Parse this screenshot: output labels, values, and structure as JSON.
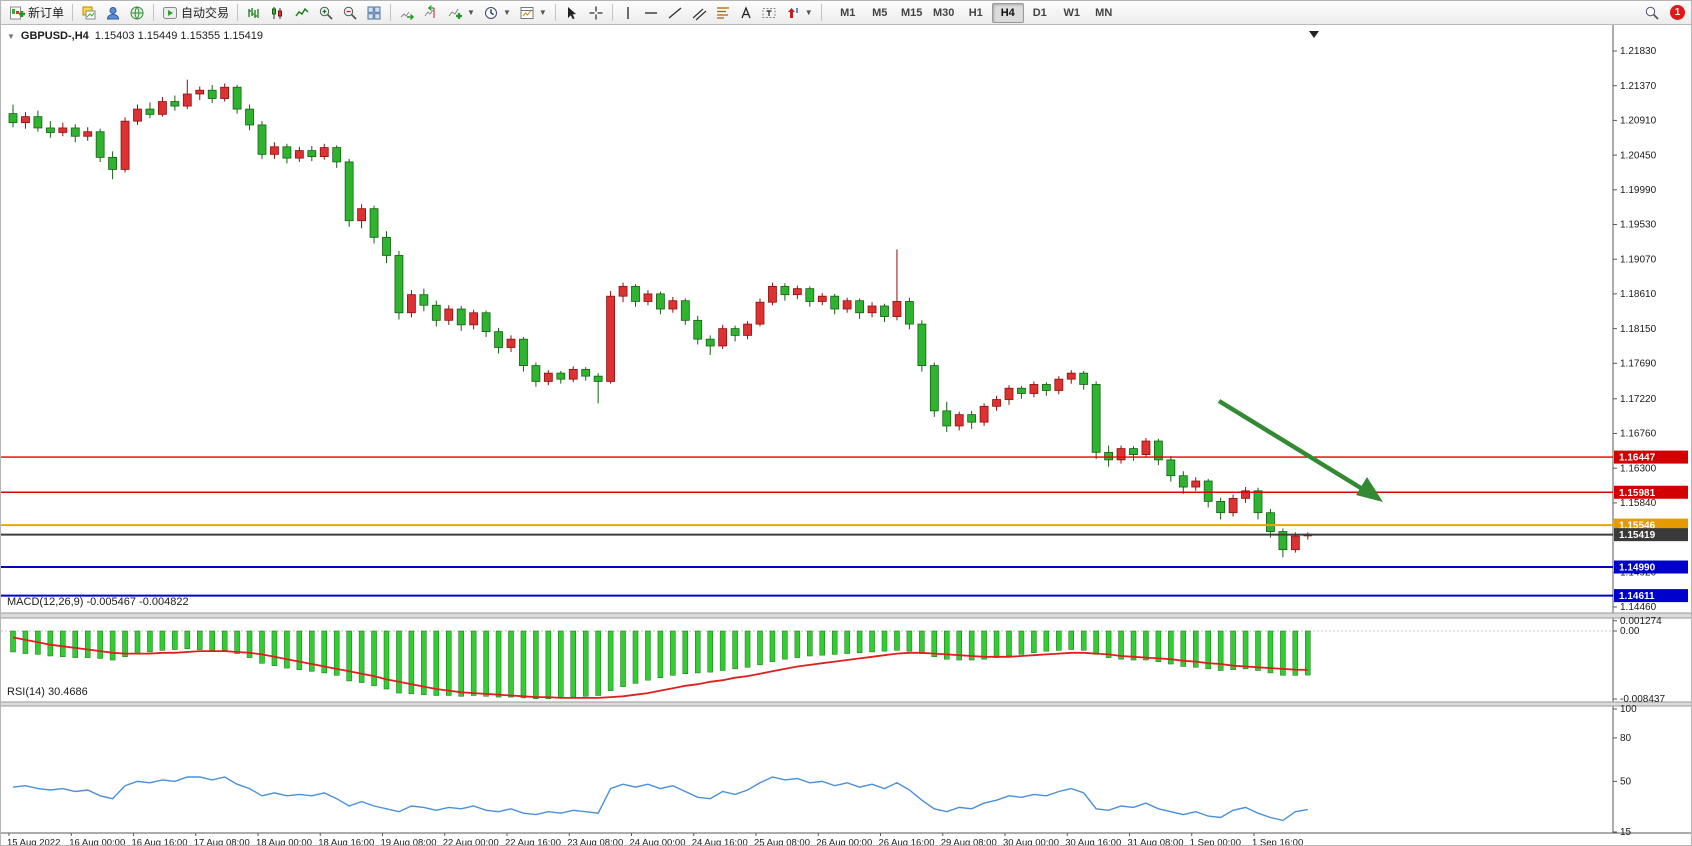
{
  "toolbar": {
    "new_order_label": "新订单",
    "autotrade_label": "自动交易",
    "timeframes": [
      "M1",
      "M5",
      "M15",
      "M30",
      "H1",
      "H4",
      "D1",
      "W1",
      "MN"
    ],
    "active_timeframe": "H4",
    "notification_count": "1",
    "icon_names": [
      "new-order-icon",
      "charts-cascade-icon",
      "profile-icon",
      "globe-icon",
      "autotrade-icon",
      "bar-chart-icon",
      "candlestick-chart-icon",
      "line-chart-icon",
      "zoom-in-icon",
      "zoom-out-icon",
      "tile-windows-icon",
      "auto-scroll-icon",
      "chart-shift-icon",
      "indicators-icon",
      "periods-icon",
      "templates-icon",
      "cursor-icon",
      "crosshair-icon",
      "vertical-line-icon",
      "horizontal-line-icon",
      "trendline-icon",
      "channel-icon",
      "fibonacci-icon",
      "text-icon",
      "label-icon",
      "arrow-shapes-icon",
      "search-icon"
    ]
  },
  "chart": {
    "symbol_label": "GBPUSD-,H4",
    "ohlc": "1.15403 1.15449 1.15355 1.15419",
    "colors": {
      "bull_fill": "#dd3232",
      "bull_stroke": "#8e0f0f",
      "bear_fill": "#2fb42f",
      "bear_stroke": "#146114",
      "red_line": "#dd0000",
      "orange_line": "#eda400",
      "current_line": "#3d3d3d",
      "blue_line": "#0000cc",
      "arrow_green": "#338a33",
      "macd_bar": "#33cc33",
      "macd_signal": "#e01e1e",
      "rsi_line": "#4a90d9"
    },
    "price_axis_labels": [
      "1.21830",
      "1.21370",
      "1.20910",
      "1.20450",
      "1.19990",
      "1.19530",
      "1.19070",
      "1.18610",
      "1.18150",
      "1.17690",
      "1.17220",
      "1.16760",
      "1.16300",
      "1.15840",
      "1.14920",
      "1.14460"
    ],
    "hlines": [
      {
        "price": "1.16447",
        "value": 1.16447,
        "color": "#dd0000",
        "tag_bg": "#d20000",
        "width": 1.4
      },
      {
        "price": "1.15981",
        "value": 1.15981,
        "color": "#dd0000",
        "tag_bg": "#d20000",
        "width": 1.4
      },
      {
        "price": "1.15546",
        "value": 1.15546,
        "color": "#eda400",
        "tag_bg": "#e49a00",
        "width": 2
      },
      {
        "price": "1.15419",
        "value": 1.15419,
        "color": "#3d3d3d",
        "tag_bg": "#3a3a3a",
        "width": 2
      },
      {
        "price": "1.14990",
        "value": 1.1499,
        "color": "#0000cc",
        "tag_bg": "#0000cc",
        "width": 2
      },
      {
        "price": "1.14611",
        "value": 1.14611,
        "color": "#0000cc",
        "tag_bg": "#0000cc",
        "width": 2
      }
    ],
    "candles": [
      [
        1.21,
        1.2112,
        1.2082,
        1.2088
      ],
      [
        1.2088,
        1.2102,
        1.208,
        1.2096
      ],
      [
        1.2096,
        1.2104,
        1.2076,
        1.2081
      ],
      [
        1.2081,
        1.209,
        1.2068,
        1.2075
      ],
      [
        1.2075,
        1.2088,
        1.207,
        1.2081
      ],
      [
        1.2081,
        1.2086,
        1.2062,
        1.207
      ],
      [
        1.207,
        1.2082,
        1.2064,
        1.2076
      ],
      [
        1.2076,
        1.208,
        1.2036,
        1.2042
      ],
      [
        1.2042,
        1.205,
        1.2013,
        1.2026
      ],
      [
        1.2026,
        1.2095,
        1.2022,
        1.209
      ],
      [
        1.209,
        1.2112,
        1.2085,
        1.2106
      ],
      [
        1.2106,
        1.2115,
        1.2094,
        1.2099
      ],
      [
        1.2099,
        1.2122,
        1.2096,
        1.2116
      ],
      [
        1.2116,
        1.2124,
        1.2104,
        1.211
      ],
      [
        1.211,
        1.2145,
        1.2106,
        1.2126
      ],
      [
        1.2126,
        1.2136,
        1.2118,
        1.2131
      ],
      [
        1.2131,
        1.2138,
        1.2114,
        1.212
      ],
      [
        1.212,
        1.214,
        1.2116,
        1.2135
      ],
      [
        1.2135,
        1.2138,
        1.21,
        1.2106
      ],
      [
        1.2106,
        1.2112,
        1.2078,
        1.2085
      ],
      [
        1.2085,
        1.209,
        1.204,
        1.2046
      ],
      [
        1.2046,
        1.2062,
        1.204,
        1.2056
      ],
      [
        1.2056,
        1.206,
        1.2034,
        1.2041
      ],
      [
        1.2041,
        1.2056,
        1.2036,
        1.2051
      ],
      [
        1.2051,
        1.2057,
        1.2037,
        1.2043
      ],
      [
        1.2043,
        1.206,
        1.2039,
        1.2055
      ],
      [
        1.2055,
        1.2058,
        1.2028,
        1.2036
      ],
      [
        1.2036,
        1.204,
        1.195,
        1.1958
      ],
      [
        1.1958,
        1.198,
        1.1948,
        1.1974
      ],
      [
        1.1974,
        1.1978,
        1.1928,
        1.1936
      ],
      [
        1.1936,
        1.1944,
        1.1902,
        1.1912
      ],
      [
        1.1912,
        1.1918,
        1.1827,
        1.1836
      ],
      [
        1.1836,
        1.1866,
        1.183,
        1.186
      ],
      [
        1.186,
        1.1868,
        1.1838,
        1.1846
      ],
      [
        1.1846,
        1.1852,
        1.1818,
        1.1826
      ],
      [
        1.1826,
        1.1846,
        1.182,
        1.1841
      ],
      [
        1.1841,
        1.1845,
        1.1812,
        1.182
      ],
      [
        1.182,
        1.184,
        1.1814,
        1.1836
      ],
      [
        1.1836,
        1.1839,
        1.1804,
        1.1811
      ],
      [
        1.1811,
        1.1816,
        1.1782,
        1.179
      ],
      [
        1.179,
        1.1806,
        1.1784,
        1.1801
      ],
      [
        1.1801,
        1.1804,
        1.1758,
        1.1766
      ],
      [
        1.1766,
        1.177,
        1.1738,
        1.1745
      ],
      [
        1.1745,
        1.176,
        1.174,
        1.1756
      ],
      [
        1.1756,
        1.1759,
        1.1742,
        1.1748
      ],
      [
        1.1748,
        1.1765,
        1.1744,
        1.1761
      ],
      [
        1.1761,
        1.1764,
        1.1746,
        1.1752
      ],
      [
        1.1752,
        1.1756,
        1.1716,
        1.1745
      ],
      [
        1.1745,
        1.1865,
        1.1742,
        1.1858
      ],
      [
        1.1858,
        1.1876,
        1.185,
        1.1871
      ],
      [
        1.1871,
        1.1874,
        1.1844,
        1.1851
      ],
      [
        1.1851,
        1.1866,
        1.1846,
        1.1861
      ],
      [
        1.1861,
        1.1864,
        1.1834,
        1.1841
      ],
      [
        1.1841,
        1.1857,
        1.1836,
        1.1852
      ],
      [
        1.1852,
        1.1855,
        1.182,
        1.1826
      ],
      [
        1.1826,
        1.1832,
        1.1794,
        1.1801
      ],
      [
        1.1801,
        1.1806,
        1.178,
        1.1792
      ],
      [
        1.1792,
        1.182,
        1.1788,
        1.1815
      ],
      [
        1.1815,
        1.1819,
        1.1798,
        1.1806
      ],
      [
        1.1806,
        1.1825,
        1.1801,
        1.1821
      ],
      [
        1.1821,
        1.1855,
        1.1818,
        1.185
      ],
      [
        1.185,
        1.1876,
        1.1846,
        1.1871
      ],
      [
        1.1871,
        1.1875,
        1.1852,
        1.186
      ],
      [
        1.186,
        1.1872,
        1.1854,
        1.1868
      ],
      [
        1.1868,
        1.1871,
        1.1844,
        1.1851
      ],
      [
        1.1851,
        1.1862,
        1.1846,
        1.1858
      ],
      [
        1.1858,
        1.1861,
        1.1834,
        1.1841
      ],
      [
        1.1841,
        1.1856,
        1.1836,
        1.1852
      ],
      [
        1.1852,
        1.1855,
        1.1828,
        1.1836
      ],
      [
        1.1836,
        1.185,
        1.183,
        1.1845
      ],
      [
        1.1845,
        1.1848,
        1.1824,
        1.1831
      ],
      [
        1.1831,
        1.192,
        1.1826,
        1.1851
      ],
      [
        1.1851,
        1.1856,
        1.1814,
        1.1821
      ],
      [
        1.1821,
        1.1826,
        1.1758,
        1.1766
      ],
      [
        1.1766,
        1.177,
        1.1698,
        1.1706
      ],
      [
        1.1706,
        1.1718,
        1.1678,
        1.1686
      ],
      [
        1.1686,
        1.1705,
        1.168,
        1.1701
      ],
      [
        1.1701,
        1.1706,
        1.1682,
        1.1691
      ],
      [
        1.1691,
        1.1716,
        1.1686,
        1.1712
      ],
      [
        1.1712,
        1.1726,
        1.1706,
        1.1721
      ],
      [
        1.1721,
        1.174,
        1.1714,
        1.1736
      ],
      [
        1.1736,
        1.1739,
        1.1722,
        1.1729
      ],
      [
        1.1729,
        1.1745,
        1.1724,
        1.1741
      ],
      [
        1.1741,
        1.1744,
        1.1726,
        1.1733
      ],
      [
        1.1733,
        1.1752,
        1.1728,
        1.1748
      ],
      [
        1.1748,
        1.176,
        1.1742,
        1.1756
      ],
      [
        1.1756,
        1.1759,
        1.1734,
        1.1741
      ],
      [
        1.1741,
        1.1745,
        1.1642,
        1.1651
      ],
      [
        1.1651,
        1.166,
        1.1632,
        1.1641
      ],
      [
        1.1641,
        1.166,
        1.1636,
        1.1656
      ],
      [
        1.1656,
        1.1659,
        1.164,
        1.1648
      ],
      [
        1.1648,
        1.167,
        1.1644,
        1.1666
      ],
      [
        1.1666,
        1.1669,
        1.1634,
        1.1641
      ],
      [
        1.1641,
        1.1646,
        1.1612,
        1.162
      ],
      [
        1.162,
        1.1626,
        1.1596,
        1.1605
      ],
      [
        1.1605,
        1.1618,
        1.16,
        1.1613
      ],
      [
        1.1613,
        1.1616,
        1.1578,
        1.1586
      ],
      [
        1.1586,
        1.1591,
        1.1562,
        1.1571
      ],
      [
        1.1571,
        1.1595,
        1.1566,
        1.159
      ],
      [
        1.159,
        1.1605,
        1.1584,
        1.16
      ],
      [
        1.16,
        1.1604,
        1.1562,
        1.1571
      ],
      [
        1.1571,
        1.1576,
        1.1538,
        1.1546
      ],
      [
        1.1546,
        1.155,
        1.1512,
        1.1522
      ],
      [
        1.1522,
        1.1545,
        1.1518,
        1.154
      ],
      [
        1.15403,
        1.15449,
        1.15355,
        1.15419
      ]
    ]
  },
  "macd": {
    "label": "MACD(12,26,9) -0.005467 -0.004822",
    "axis_labels": [
      "0.001274",
      "0.00",
      "-0.008437"
    ],
    "axis_values": [
      0.001274,
      0.0,
      -0.008437
    ],
    "histogram": [
      -0.0026,
      -0.0028,
      -0.0029,
      -0.0031,
      -0.0032,
      -0.0033,
      -0.0033,
      -0.0034,
      -0.0036,
      -0.0032,
      -0.0028,
      -0.0026,
      -0.0024,
      -0.0023,
      -0.0022,
      -0.0023,
      -0.0024,
      -0.0024,
      -0.0028,
      -0.0033,
      -0.004,
      -0.0043,
      -0.0046,
      -0.0048,
      -0.005,
      -0.0052,
      -0.0055,
      -0.0062,
      -0.0064,
      -0.0068,
      -0.0072,
      -0.0077,
      -0.0078,
      -0.0079,
      -0.008,
      -0.008,
      -0.0081,
      -0.008,
      -0.0081,
      -0.0082,
      -0.0082,
      -0.0083,
      -0.0084,
      -0.0084,
      -0.0083,
      -0.0082,
      -0.0081,
      -0.008,
      -0.0074,
      -0.0069,
      -0.0065,
      -0.0061,
      -0.0058,
      -0.0055,
      -0.0053,
      -0.0052,
      -0.0051,
      -0.0049,
      -0.0047,
      -0.0045,
      -0.0042,
      -0.0038,
      -0.0035,
      -0.0033,
      -0.0031,
      -0.003,
      -0.0029,
      -0.0028,
      -0.0027,
      -0.0026,
      -0.0025,
      -0.0024,
      -0.0025,
      -0.0028,
      -0.0032,
      -0.0035,
      -0.0036,
      -0.0036,
      -0.0035,
      -0.0033,
      -0.0031,
      -0.0029,
      -0.0027,
      -0.0025,
      -0.0024,
      -0.0023,
      -0.0024,
      -0.0029,
      -0.0033,
      -0.0035,
      -0.0036,
      -0.0036,
      -0.0038,
      -0.0041,
      -0.0044,
      -0.0045,
      -0.0047,
      -0.0049,
      -0.0048,
      -0.0047,
      -0.0049,
      -0.0052,
      -0.0055,
      -0.0055,
      -0.005467
    ],
    "signal": [
      -0.0008,
      -0.0011,
      -0.0014,
      -0.0017,
      -0.0019,
      -0.0021,
      -0.0023,
      -0.0025,
      -0.0027,
      -0.0028,
      -0.0028,
      -0.0028,
      -0.0027,
      -0.0027,
      -0.0026,
      -0.0025,
      -0.0025,
      -0.0025,
      -0.0026,
      -0.0027,
      -0.0029,
      -0.0032,
      -0.0035,
      -0.0038,
      -0.0041,
      -0.0044,
      -0.0047,
      -0.005,
      -0.0053,
      -0.0056,
      -0.006,
      -0.0063,
      -0.0066,
      -0.0069,
      -0.0072,
      -0.0074,
      -0.0076,
      -0.0077,
      -0.0078,
      -0.0079,
      -0.008,
      -0.0081,
      -0.0082,
      -0.0082,
      -0.0083,
      -0.0083,
      -0.0083,
      -0.0083,
      -0.0082,
      -0.0081,
      -0.0079,
      -0.0077,
      -0.0074,
      -0.0071,
      -0.0068,
      -0.0066,
      -0.0063,
      -0.0061,
      -0.0058,
      -0.0056,
      -0.0053,
      -0.005,
      -0.0047,
      -0.0044,
      -0.0042,
      -0.004,
      -0.0038,
      -0.0036,
      -0.0034,
      -0.0032,
      -0.003,
      -0.0028,
      -0.0027,
      -0.0027,
      -0.0028,
      -0.0029,
      -0.003,
      -0.0031,
      -0.0032,
      -0.0032,
      -0.0032,
      -0.0031,
      -0.003,
      -0.0029,
      -0.0028,
      -0.0027,
      -0.0027,
      -0.0028,
      -0.0029,
      -0.0031,
      -0.0032,
      -0.0033,
      -0.0034,
      -0.0035,
      -0.0037,
      -0.0038,
      -0.004,
      -0.0041,
      -0.0043,
      -0.0044,
      -0.0045,
      -0.0046,
      -0.0047,
      -0.0048,
      -0.004822
    ]
  },
  "rsi": {
    "label": "RSI(14) 30.4686",
    "axis_labels": [
      "100",
      "80",
      "50",
      "15"
    ],
    "axis_values": [
      100,
      80,
      50,
      15
    ],
    "values": [
      46,
      47,
      45,
      44,
      45,
      43,
      44,
      40,
      38,
      47,
      50,
      49,
      51,
      50,
      53,
      53,
      51,
      53,
      48,
      45,
      40,
      42,
      40,
      41,
      40,
      42,
      38,
      33,
      36,
      33,
      31,
      29,
      33,
      32,
      30,
      32,
      31,
      33,
      30,
      29,
      31,
      28,
      27,
      29,
      28,
      30,
      29,
      28,
      45,
      48,
      46,
      48,
      45,
      47,
      43,
      39,
      38,
      43,
      41,
      44,
      49,
      53,
      51,
      52,
      49,
      50,
      47,
      49,
      46,
      48,
      45,
      49,
      44,
      37,
      31,
      29,
      32,
      31,
      35,
      37,
      40,
      39,
      41,
      40,
      43,
      45,
      42,
      31,
      30,
      33,
      32,
      35,
      31,
      29,
      27,
      29,
      26,
      25,
      30,
      32,
      28,
      25,
      23,
      29,
      30.4686
    ]
  },
  "time_axis": {
    "labels": [
      "15 Aug 2022",
      "16 Aug 00:00",
      "16 Aug 16:00",
      "17 Aug 08:00",
      "18 Aug 00:00",
      "18 Aug 16:00",
      "19 Aug 08:00",
      "22 Aug 00:00",
      "22 Aug 16:00",
      "23 Aug 08:00",
      "24 Aug 00:00",
      "24 Aug 16:00",
      "25 Aug 08:00",
      "26 Aug 00:00",
      "26 Aug 16:00",
      "29 Aug 08:00",
      "30 Aug 00:00",
      "30 Aug 16:00",
      "31 Aug 08:00",
      "1 Sep 00:00",
      "1 Sep 16:00"
    ]
  }
}
